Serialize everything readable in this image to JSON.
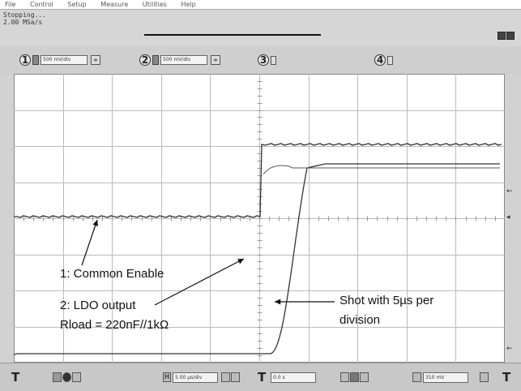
{
  "menu": {
    "items": [
      "File",
      "Control",
      "Setup",
      "Measure",
      "Utilities",
      "Help"
    ]
  },
  "status": {
    "line1": "Stopping...",
    "line2": "2.00 MSa/s"
  },
  "channels": [
    {
      "num": "1",
      "scale": "500 mV/div"
    },
    {
      "num": "2",
      "scale": "500 mV/div"
    },
    {
      "num": "3",
      "scale": ""
    },
    {
      "num": "4",
      "scale": ""
    }
  ],
  "timebase": {
    "label": "H",
    "value": "5.00 µs/div",
    "delay": "0.0 s",
    "trigger_level": "310 mV"
  },
  "annotations": {
    "ch1": "1: Common Enable",
    "ch2_line1": "2: LDO output",
    "ch2_line2": "Rload = 220nF//1kΩ",
    "note_line1": "Shot with 5µs per",
    "note_line2": "division"
  },
  "colors": {
    "trace": "#333333",
    "grid": "#bbbbbb",
    "panel": "#d2d2d2"
  },
  "icons": [
    "trigger-icon",
    "run-icon",
    "stop-icon",
    "spinner-icon",
    "arrow-icon"
  ]
}
